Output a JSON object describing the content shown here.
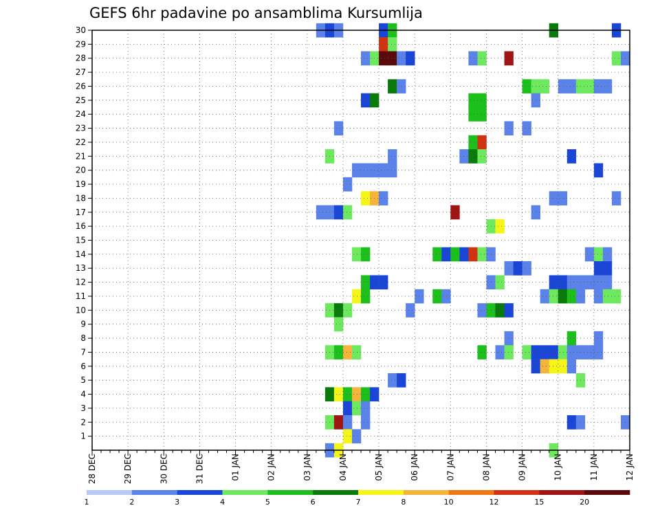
{
  "chart_data": {
    "type": "heatmap",
    "title": "GEFS 6hr padavine po ansamblima Kursumlija",
    "x_tick_labels": [
      "28 DEC",
      "29 DEC",
      "30 DEC",
      "31 DEC",
      "01 JAN",
      "02 JAN",
      "03 JAN",
      "04 JAN",
      "05 JAN",
      "06 JAN",
      "07 JAN",
      "08 JAN",
      "09 JAN",
      "10 JAN",
      "11 JAN",
      "12 JAN"
    ],
    "y_tick_labels": [
      "1",
      "2",
      "3",
      "4",
      "5",
      "6",
      "7",
      "8",
      "9",
      "10",
      "11",
      "12",
      "13",
      "14",
      "15",
      "16",
      "17",
      "18",
      "19",
      "20",
      "21",
      "22",
      "23",
      "24",
      "25",
      "26",
      "27",
      "28",
      "29",
      "30"
    ],
    "x_step_hours": 6,
    "y_range": [
      0,
      30
    ],
    "grid": true,
    "colorbar": {
      "labels": [
        "1",
        "2",
        "3",
        "4",
        "5",
        "6",
        "7",
        "8",
        "10",
        "12",
        "15",
        "20"
      ],
      "colors": [
        "#b7c8f5",
        "#5a82e8",
        "#1a46d8",
        "#6ee85e",
        "#1dbf1d",
        "#0a7a0a",
        "#f5f51a",
        "#f5b43c",
        "#f07814",
        "#d23214",
        "#a01414",
        "#5a0a0a"
      ]
    },
    "cells": [
      [
        25,
        30,
        1
      ],
      [
        26,
        30,
        2
      ],
      [
        27,
        30,
        1
      ],
      [
        32,
        30,
        2
      ],
      [
        33,
        30,
        4
      ],
      [
        51,
        30,
        5
      ],
      [
        58,
        30,
        2
      ],
      [
        32,
        29,
        9
      ],
      [
        33,
        29,
        3
      ],
      [
        30,
        28,
        1
      ],
      [
        31,
        28,
        3
      ],
      [
        32,
        28,
        11
      ],
      [
        33,
        28,
        11
      ],
      [
        34,
        28,
        1
      ],
      [
        35,
        28,
        2
      ],
      [
        42,
        28,
        1
      ],
      [
        43,
        28,
        3
      ],
      [
        46,
        28,
        10
      ],
      [
        58,
        28,
        3
      ],
      [
        59,
        28,
        1
      ],
      [
        33,
        26,
        5
      ],
      [
        34,
        26,
        1
      ],
      [
        48,
        26,
        4
      ],
      [
        49,
        26,
        3
      ],
      [
        50,
        26,
        3
      ],
      [
        52,
        26,
        1
      ],
      [
        53,
        26,
        1
      ],
      [
        54,
        26,
        3
      ],
      [
        55,
        26,
        3
      ],
      [
        56,
        26,
        1
      ],
      [
        57,
        26,
        1
      ],
      [
        30,
        25,
        2
      ],
      [
        31,
        25,
        5
      ],
      [
        42,
        25,
        4
      ],
      [
        43,
        25,
        4
      ],
      [
        49,
        25,
        1
      ],
      [
        42,
        24,
        4
      ],
      [
        43,
        24,
        4
      ],
      [
        27,
        23,
        1
      ],
      [
        46,
        23,
        1
      ],
      [
        48,
        23,
        1
      ],
      [
        42,
        22,
        4
      ],
      [
        43,
        22,
        9
      ],
      [
        26,
        21,
        3
      ],
      [
        33,
        21,
        1
      ],
      [
        41,
        21,
        1
      ],
      [
        42,
        21,
        5
      ],
      [
        43,
        21,
        3
      ],
      [
        53,
        21,
        2
      ],
      [
        29,
        20,
        1
      ],
      [
        30,
        20,
        1
      ],
      [
        31,
        20,
        1
      ],
      [
        32,
        20,
        1
      ],
      [
        33,
        20,
        1
      ],
      [
        56,
        20,
        2
      ],
      [
        28,
        19,
        1
      ],
      [
        30,
        18,
        6
      ],
      [
        31,
        18,
        7
      ],
      [
        32,
        18,
        1
      ],
      [
        51,
        18,
        1
      ],
      [
        52,
        18,
        1
      ],
      [
        58,
        18,
        1
      ],
      [
        25,
        17,
        1
      ],
      [
        26,
        17,
        1
      ],
      [
        27,
        17,
        2
      ],
      [
        28,
        17,
        3
      ],
      [
        40,
        17,
        10
      ],
      [
        49,
        17,
        1
      ],
      [
        44,
        16,
        3
      ],
      [
        45,
        16,
        6
      ],
      [
        29,
        14,
        3
      ],
      [
        30,
        14,
        4
      ],
      [
        38,
        14,
        4
      ],
      [
        39,
        14,
        2
      ],
      [
        40,
        14,
        4
      ],
      [
        41,
        14,
        2
      ],
      [
        42,
        14,
        9
      ],
      [
        43,
        14,
        3
      ],
      [
        44,
        14,
        1
      ],
      [
        55,
        14,
        1
      ],
      [
        56,
        14,
        3
      ],
      [
        57,
        14,
        1
      ],
      [
        46,
        13,
        1
      ],
      [
        47,
        13,
        2
      ],
      [
        48,
        13,
        1
      ],
      [
        56,
        13,
        2
      ],
      [
        57,
        13,
        2
      ],
      [
        30,
        12,
        4
      ],
      [
        31,
        12,
        2
      ],
      [
        32,
        12,
        2
      ],
      [
        44,
        12,
        1
      ],
      [
        45,
        12,
        3
      ],
      [
        51,
        12,
        2
      ],
      [
        52,
        12,
        2
      ],
      [
        53,
        12,
        1
      ],
      [
        54,
        12,
        1
      ],
      [
        55,
        12,
        1
      ],
      [
        56,
        12,
        1
      ],
      [
        57,
        12,
        1
      ],
      [
        29,
        11,
        6
      ],
      [
        30,
        11,
        4
      ],
      [
        36,
        11,
        1
      ],
      [
        38,
        11,
        4
      ],
      [
        39,
        11,
        1
      ],
      [
        50,
        11,
        1
      ],
      [
        51,
        11,
        3
      ],
      [
        52,
        11,
        5
      ],
      [
        53,
        11,
        4
      ],
      [
        54,
        11,
        1
      ],
      [
        56,
        11,
        1
      ],
      [
        57,
        11,
        3
      ],
      [
        58,
        11,
        3
      ],
      [
        26,
        10,
        3
      ],
      [
        27,
        10,
        5
      ],
      [
        28,
        10,
        3
      ],
      [
        35,
        10,
        1
      ],
      [
        43,
        10,
        1
      ],
      [
        44,
        10,
        4
      ],
      [
        45,
        10,
        5
      ],
      [
        46,
        10,
        2
      ],
      [
        27,
        9,
        3
      ],
      [
        46,
        8,
        1
      ],
      [
        53,
        8,
        4
      ],
      [
        56,
        8,
        1
      ],
      [
        26,
        7,
        3
      ],
      [
        27,
        7,
        4
      ],
      [
        28,
        7,
        7
      ],
      [
        29,
        7,
        3
      ],
      [
        43,
        7,
        4
      ],
      [
        45,
        7,
        1
      ],
      [
        46,
        7,
        3
      ],
      [
        48,
        7,
        3
      ],
      [
        49,
        7,
        2
      ],
      [
        50,
        7,
        2
      ],
      [
        51,
        7,
        2
      ],
      [
        52,
        7,
        3
      ],
      [
        53,
        7,
        1
      ],
      [
        54,
        7,
        1
      ],
      [
        55,
        7,
        1
      ],
      [
        56,
        7,
        1
      ],
      [
        49,
        6,
        2
      ],
      [
        50,
        6,
        7
      ],
      [
        51,
        6,
        6
      ],
      [
        52,
        6,
        6
      ],
      [
        53,
        6,
        1
      ],
      [
        33,
        5,
        1
      ],
      [
        34,
        5,
        2
      ],
      [
        54,
        5,
        3
      ],
      [
        26,
        4,
        5
      ],
      [
        27,
        4,
        6
      ],
      [
        28,
        4,
        4
      ],
      [
        29,
        4,
        7
      ],
      [
        30,
        4,
        4
      ],
      [
        31,
        4,
        2
      ],
      [
        28,
        3,
        2
      ],
      [
        29,
        3,
        3
      ],
      [
        30,
        3,
        1
      ],
      [
        26,
        2,
        3
      ],
      [
        27,
        2,
        10
      ],
      [
        28,
        2,
        1
      ],
      [
        30,
        2,
        1
      ],
      [
        53,
        2,
        2
      ],
      [
        54,
        2,
        1
      ],
      [
        59,
        2,
        1
      ],
      [
        28,
        1,
        6
      ],
      [
        29,
        1,
        1
      ],
      [
        26,
        0,
        1
      ],
      [
        27,
        0,
        6
      ],
      [
        51,
        0,
        3
      ]
    ]
  }
}
